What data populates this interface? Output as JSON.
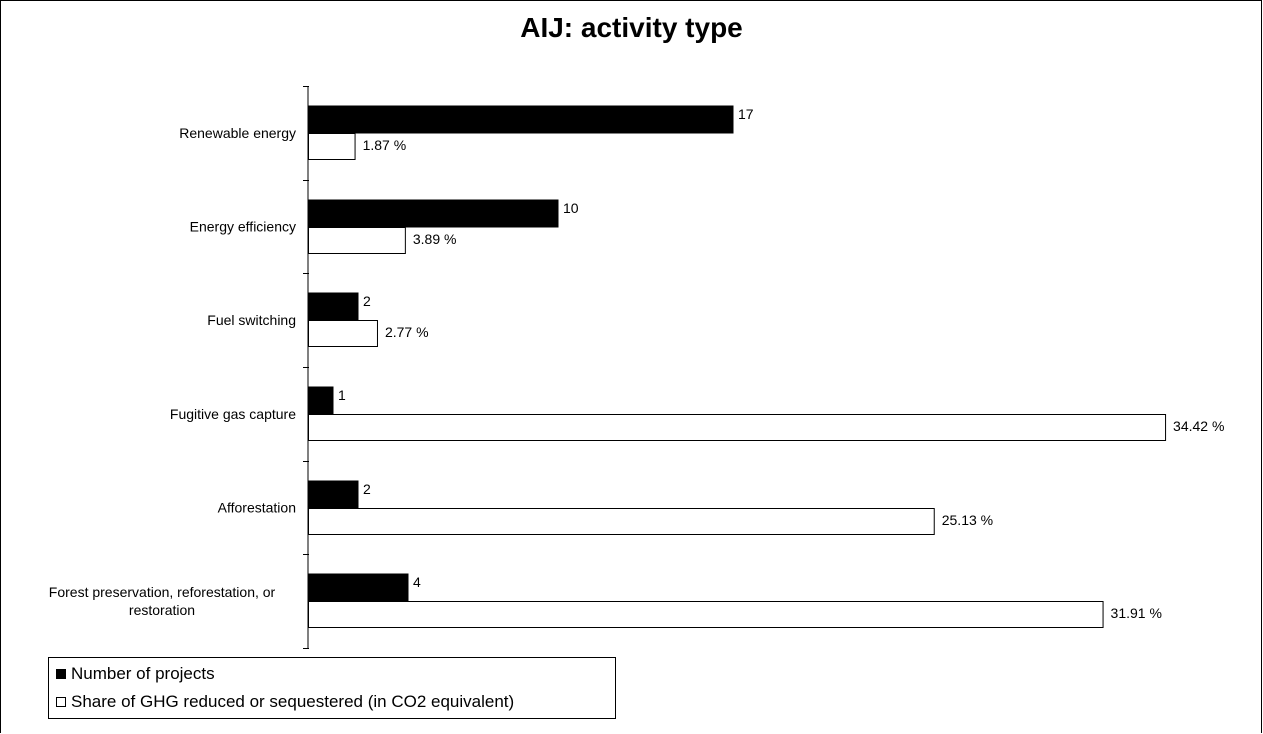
{
  "chart_data": {
    "type": "bar",
    "orientation": "horizontal",
    "title": "AIJ: activity type",
    "categories": [
      "Renewable energy",
      "Energy efficiency",
      "Fuel switching",
      "Fugitive gas capture",
      "Afforestation",
      "Forest preservation, reforestation, or restoration"
    ],
    "series": [
      {
        "name": "Number of projects",
        "color": "#000000",
        "values": [
          17,
          10,
          2,
          1,
          2,
          4
        ],
        "value_labels": [
          "17",
          "10",
          "2",
          "1",
          "2",
          "4"
        ]
      },
      {
        "name": "Share of GHG reduced or sequestered (in CO2 equivalent)",
        "color": "#ffffff",
        "values": [
          1.87,
          3.89,
          2.77,
          34.42,
          25.13,
          31.91
        ],
        "value_labels": [
          "1.87   %",
          "3.89   %",
          "2.77   %",
          "34.42 %",
          "25.13 %",
          "31.91 %"
        ]
      }
    ],
    "xlim": [
      0,
      35
    ],
    "grid": false,
    "legend_position": "bottom-left"
  }
}
